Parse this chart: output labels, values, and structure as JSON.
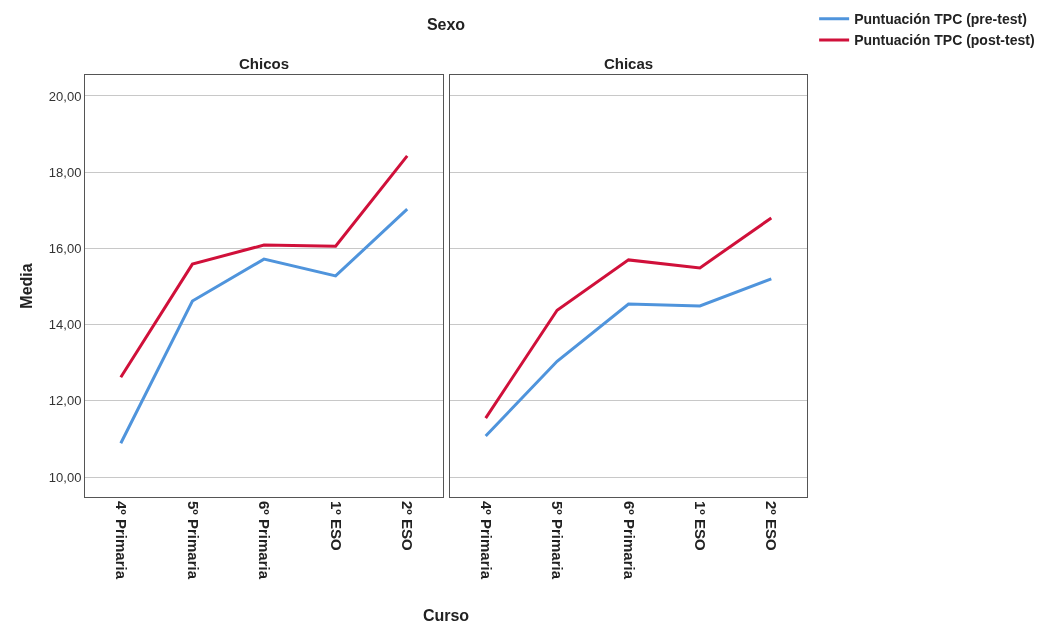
{
  "chart_data": [
    {
      "type": "line",
      "title": "Chicos",
      "ylabel": "Media",
      "annotations": [
        "Sexo",
        "Curso"
      ],
      "categories": [
        "4º Primaria",
        "5º Primaria",
        "6º Primaria",
        "1º ESO",
        "2º ESO"
      ],
      "series": [
        {
          "color": "#4f94dc",
          "values": [
            10.89,
            14.62,
            15.72,
            15.28,
            17.03
          ]
        },
        {
          "color": "#d0103a",
          "values": [
            12.62,
            15.59,
            16.09,
            16.06,
            18.43
          ]
        }
      ],
      "ylim": [
        9.48,
        20.55
      ],
      "yticks": [
        {
          "value": 10,
          "label": "10,00"
        },
        {
          "value": 12,
          "label": "12,00"
        },
        {
          "value": 14,
          "label": "14,00"
        },
        {
          "value": 16,
          "label": "16,00"
        },
        {
          "value": 18,
          "label": "18,00"
        },
        {
          "value": 20,
          "label": "20,00"
        }
      ],
      "grid": "y",
      "legend": false
    },
    {
      "type": "line",
      "title": "Chicas",
      "categories": [
        "4º Primaria",
        "5º Primaria",
        "6º Primaria",
        "1º ESO",
        "2º ESO"
      ],
      "series": [
        {
          "name": "Puntuación TPC (pre-test)",
          "color": "#4f94dc",
          "values": [
            11.08,
            13.04,
            14.54,
            14.49,
            15.2
          ]
        },
        {
          "name": "Puntuación TPC (post-test)",
          "color": "#d0103a",
          "values": [
            11.55,
            14.38,
            15.7,
            15.49,
            16.8
          ]
        }
      ],
      "ylim": [
        9.48,
        20.55
      ],
      "yticks": [
        {
          "value": 10,
          "label": null
        },
        {
          "value": 12,
          "label": null
        },
        {
          "value": 14,
          "label": null
        },
        {
          "value": 16,
          "label": null
        },
        {
          "value": 18,
          "label": null
        },
        {
          "value": 20,
          "label": null
        }
      ],
      "grid": "y",
      "legend": "top right",
      "tick_labels": "x"
    }
  ]
}
